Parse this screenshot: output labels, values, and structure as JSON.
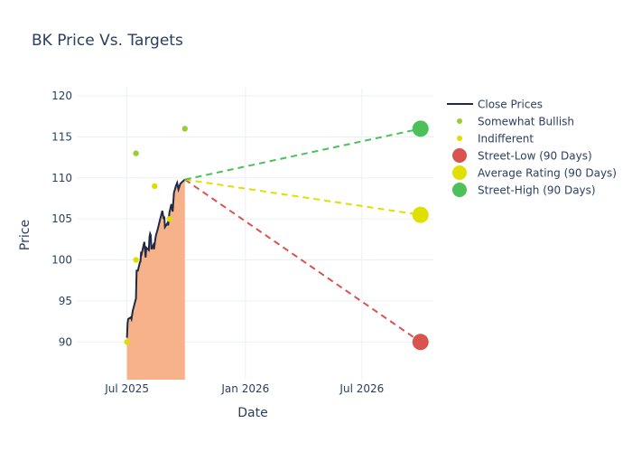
{
  "chart_data": {
    "type": "line",
    "title": "BK Price Vs. Targets",
    "xlabel": "Date",
    "ylabel": "Price",
    "xlim": [
      "2025-04-14",
      "2026-10-20"
    ],
    "ylim": [
      85.4,
      121
    ],
    "x_ticks": [
      {
        "date": "2025-07-01",
        "label": "Jul 2025"
      },
      {
        "date": "2026-01-01",
        "label": "Jan 2026"
      },
      {
        "date": "2026-07-01",
        "label": "Jul 2026"
      }
    ],
    "y_ticks": [
      90,
      95,
      100,
      105,
      110,
      115,
      120
    ],
    "grid": true,
    "legend_position": "right",
    "close_prices": [
      [
        "2025-07-01",
        90.5
      ],
      [
        "2025-07-02",
        92.3
      ],
      [
        "2025-07-03",
        92.8
      ],
      [
        "2025-07-07",
        93.0
      ],
      [
        "2025-07-08",
        92.8
      ],
      [
        "2025-07-10",
        93.8
      ],
      [
        "2025-07-14",
        95.0
      ],
      [
        "2025-07-15",
        95.3
      ],
      [
        "2025-07-16",
        98.7
      ],
      [
        "2025-07-18",
        98.7
      ],
      [
        "2025-07-21",
        99.7
      ],
      [
        "2025-07-22",
        99.8
      ],
      [
        "2025-07-23",
        101.0
      ],
      [
        "2025-07-24",
        100.8
      ],
      [
        "2025-07-28",
        102.2
      ],
      [
        "2025-07-29",
        101.3
      ],
      [
        "2025-07-30",
        100.3
      ],
      [
        "2025-07-31",
        101.5
      ],
      [
        "2025-08-04",
        101.2
      ],
      [
        "2025-08-05",
        102.8
      ],
      [
        "2025-08-06",
        103.2
      ],
      [
        "2025-08-07",
        103.0
      ],
      [
        "2025-08-08",
        101.3
      ],
      [
        "2025-08-11",
        101.8
      ],
      [
        "2025-08-12",
        101.3
      ],
      [
        "2025-08-14",
        102.5
      ],
      [
        "2025-08-15",
        103.0
      ],
      [
        "2025-08-18",
        103.8
      ],
      [
        "2025-08-21",
        104.8
      ],
      [
        "2025-08-25",
        106.0
      ],
      [
        "2025-08-26",
        105.5
      ],
      [
        "2025-08-27",
        105.0
      ],
      [
        "2025-08-28",
        105.3
      ],
      [
        "2025-08-29",
        104.0
      ],
      [
        "2025-09-02",
        104.5
      ],
      [
        "2025-09-03",
        104.2
      ],
      [
        "2025-09-05",
        105.8
      ],
      [
        "2025-09-08",
        106.8
      ],
      [
        "2025-09-09",
        106.3
      ],
      [
        "2025-09-10",
        105.9
      ],
      [
        "2025-09-12",
        108.2
      ],
      [
        "2025-09-15",
        109.0
      ],
      [
        "2025-09-17",
        109.4
      ],
      [
        "2025-09-19",
        108.6
      ],
      [
        "2025-09-22",
        109.3
      ],
      [
        "2025-09-26",
        109.6
      ],
      [
        "2025-09-29",
        109.8
      ]
    ],
    "series": [
      {
        "name": "Close Prices",
        "kind": "line",
        "color": "#1f2a44"
      },
      {
        "name": "Somewhat Bullish",
        "kind": "marker",
        "color": "#9acd32",
        "points": [
          [
            "2025-07-15",
            113
          ],
          [
            "2025-09-29",
            116
          ]
        ]
      },
      {
        "name": "Indifferent",
        "kind": "marker",
        "color": "#dddd00",
        "points": [
          [
            "2025-07-01",
            90
          ],
          [
            "2025-07-15",
            100
          ],
          [
            "2025-08-13",
            109
          ],
          [
            "2025-09-05",
            105
          ]
        ]
      },
      {
        "name": "Street-Low (90 Days)",
        "kind": "target",
        "color": "#d9534f",
        "points": [
          [
            "2025-09-29",
            109.8
          ],
          [
            "2026-09-30",
            90
          ]
        ]
      },
      {
        "name": "Average Rating (90 Days)",
        "kind": "target",
        "color": "#e0e000",
        "points": [
          [
            "2025-09-29",
            109.8
          ],
          [
            "2026-09-30",
            105.5
          ]
        ]
      },
      {
        "name": "Street-High (90 Days)",
        "kind": "target",
        "color": "#4cc15a",
        "points": [
          [
            "2025-09-29",
            109.8
          ],
          [
            "2026-09-30",
            116
          ]
        ]
      }
    ],
    "fill_color": "#f8b28a"
  }
}
